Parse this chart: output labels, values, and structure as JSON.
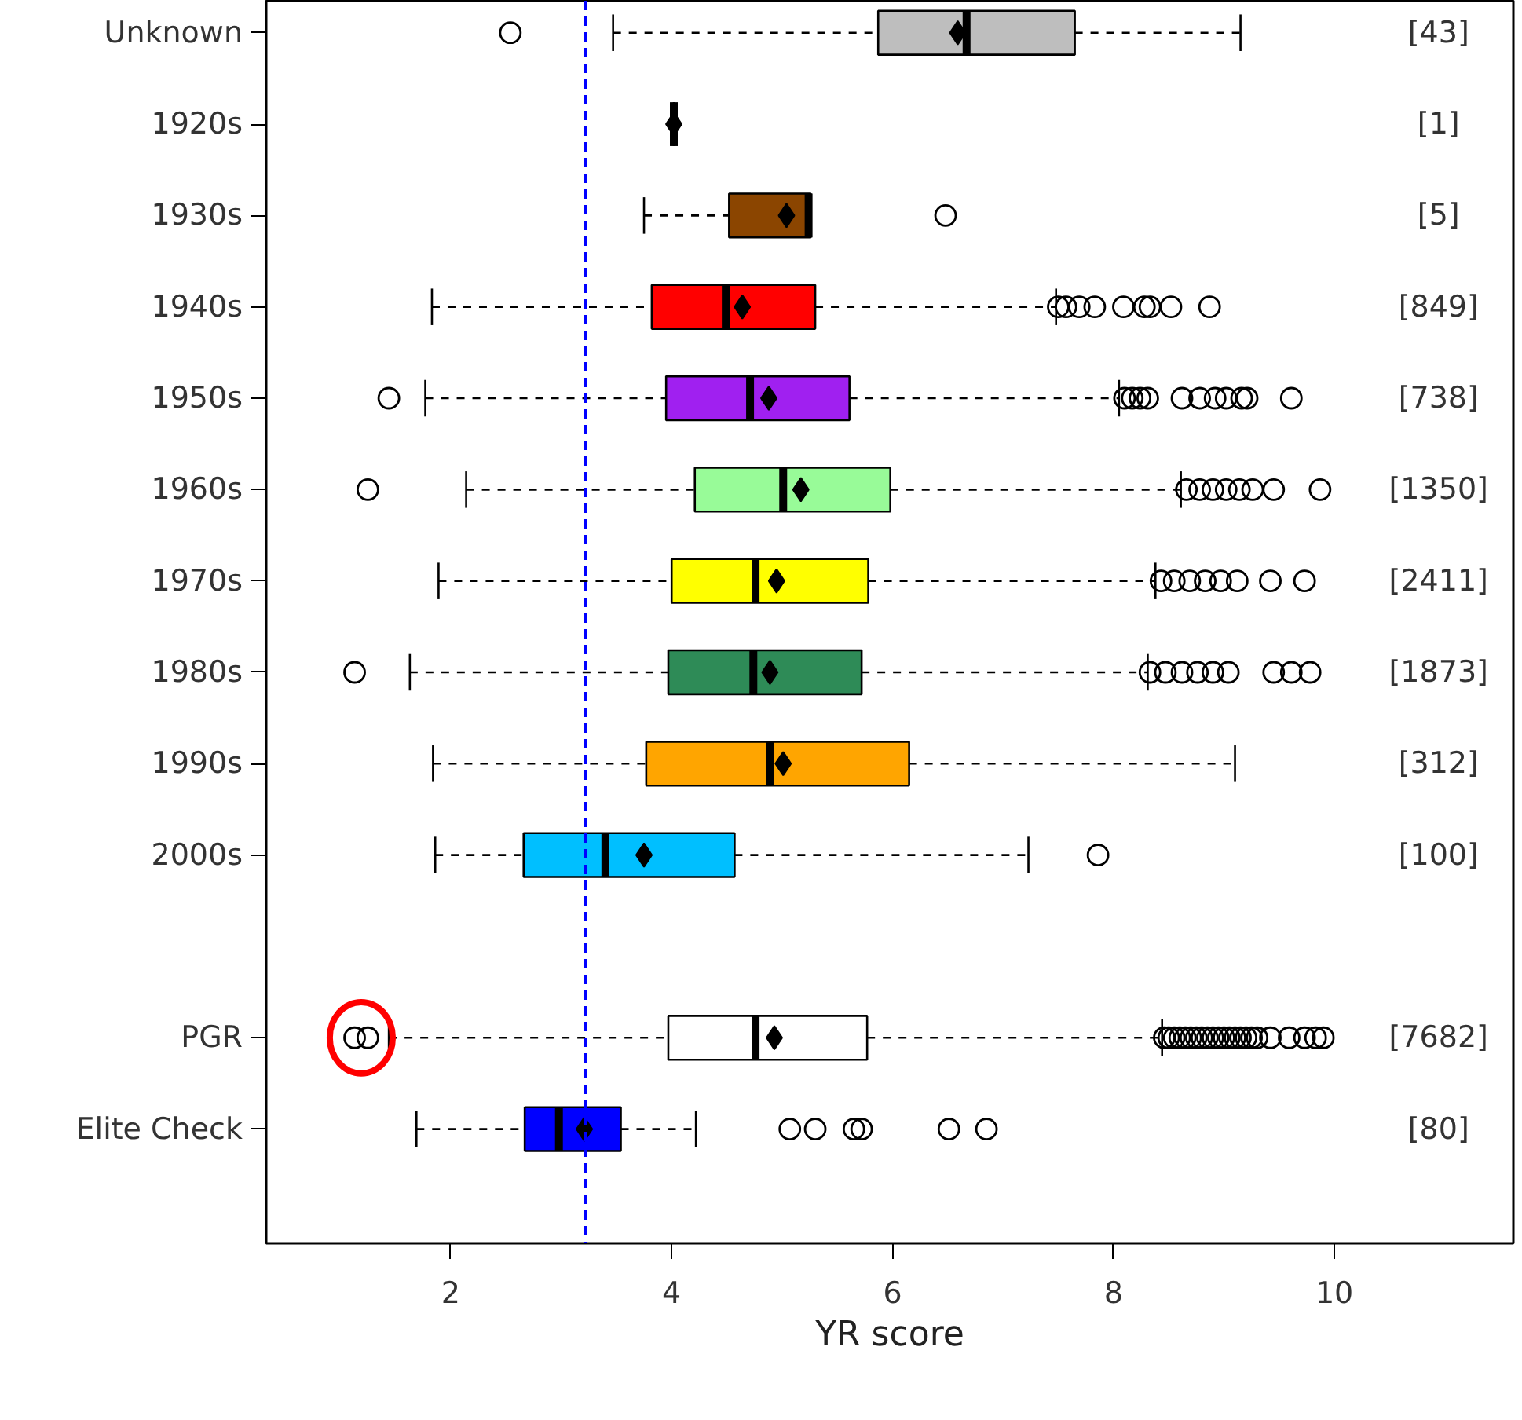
{
  "chart_data": {
    "type": "box",
    "orientation": "horizontal",
    "xlabel": "YR score",
    "categories": [
      "Unknown",
      "1920s",
      "1930s",
      "1940s",
      "1950s",
      "1960s",
      "1970s",
      "1980s",
      "1990s",
      "2000s",
      null,
      "PGR",
      "Elite Check"
    ],
    "colors": [
      "#bebebe",
      "#000000",
      "#8b4500",
      "#ff0000",
      "#a020f0",
      "#98fb98",
      "#ffff00",
      "#2e8b57",
      "#ffa500",
      "#00bfff",
      null,
      "#ffffff",
      "#0000ff"
    ],
    "boxes": [
      {
        "low": 3.47,
        "q1": 5.87,
        "median": 6.67,
        "q3": 7.65,
        "high": 9.15,
        "mean": 6.59,
        "outliers": [
          2.54
        ]
      },
      {
        "low": 4.02,
        "q1": 4.02,
        "median": 4.02,
        "q3": 4.02,
        "high": 4.02,
        "mean": 4.02
      },
      {
        "low": 3.75,
        "q1": 4.52,
        "median": 5.24,
        "q3": 5.26,
        "high": 5.26,
        "mean": 5.04,
        "outliers": [
          6.48
        ]
      },
      {
        "low": 1.83,
        "q1": 3.82,
        "median": 4.49,
        "q3": 5.3,
        "high": 7.48,
        "mean": 4.64,
        "outliers": [
          7.5,
          7.57,
          7.69,
          7.83,
          8.09,
          8.28,
          8.33,
          8.52,
          8.87
        ]
      },
      {
        "low": 1.77,
        "q1": 3.95,
        "median": 4.71,
        "q3": 5.61,
        "high": 8.05,
        "mean": 4.88,
        "outliers": [
          1.44,
          8.1,
          8.17,
          8.24,
          8.31,
          8.62,
          8.78,
          8.92,
          9.02,
          9.16,
          9.21,
          9.61
        ]
      },
      {
        "low": 2.14,
        "q1": 4.21,
        "median": 5.01,
        "q3": 5.98,
        "high": 8.61,
        "mean": 5.17,
        "outliers": [
          1.25,
          8.66,
          8.78,
          8.9,
          9.02,
          9.14,
          9.26,
          9.45,
          9.87
        ]
      },
      {
        "low": 1.89,
        "q1": 4.0,
        "median": 4.76,
        "q3": 5.78,
        "high": 8.38,
        "mean": 4.95,
        "outliers": [
          8.43,
          8.55,
          8.69,
          8.83,
          8.97,
          9.12,
          9.42,
          9.73
        ]
      },
      {
        "low": 1.63,
        "q1": 3.97,
        "median": 4.74,
        "q3": 5.72,
        "high": 8.31,
        "mean": 4.89,
        "outliers": [
          1.13,
          8.33,
          8.47,
          8.62,
          8.76,
          8.9,
          9.04,
          9.45,
          9.61,
          9.78
        ]
      },
      {
        "low": 1.84,
        "q1": 3.77,
        "median": 4.89,
        "q3": 6.15,
        "high": 9.1,
        "mean": 5.01
      },
      {
        "low": 1.86,
        "q1": 2.66,
        "median": 3.4,
        "q3": 4.57,
        "high": 7.23,
        "mean": 3.75,
        "outliers": [
          7.86
        ]
      },
      null,
      {
        "low": 1.44,
        "q1": 3.97,
        "median": 4.76,
        "q3": 5.77,
        "high": 8.44,
        "mean": 4.93,
        "outliers": [
          1.13,
          1.25,
          8.46,
          8.5,
          8.55,
          8.6,
          8.65,
          8.7,
          8.75,
          8.8,
          8.85,
          8.9,
          8.95,
          9.0,
          9.05,
          9.1,
          9.15,
          9.2,
          9.25,
          9.3,
          9.42,
          9.59,
          9.73,
          9.83,
          9.9
        ]
      },
      {
        "low": 1.69,
        "q1": 2.67,
        "median": 2.98,
        "q3": 3.54,
        "high": 4.22,
        "mean": 3.21,
        "outliers": [
          5.07,
          5.3,
          5.65,
          5.72,
          6.51,
          6.85
        ]
      }
    ],
    "xlim": [
      0.33,
      11.62
    ],
    "xticks": [
      2,
      4,
      6,
      8,
      10
    ],
    "grid": false,
    "ref_lines": [
      {
        "axis": "x",
        "value": 3.22,
        "color": "#0000ff",
        "line_style": "dashed"
      }
    ],
    "annotations": [
      "[43]",
      "[1]",
      "[5]",
      "[849]",
      "[738]",
      "[1350]",
      "[2411]",
      "[1873]",
      "[312]",
      "[100]",
      "[7682]",
      "[80]"
    ]
  }
}
